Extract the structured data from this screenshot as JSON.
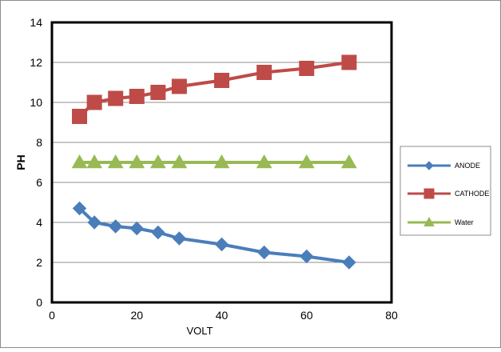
{
  "chart_data": {
    "type": "line",
    "title": "",
    "xlabel": "VOLT",
    "ylabel": "PH",
    "xlim": [
      0,
      80
    ],
    "ylim": [
      0,
      14
    ],
    "x_ticks": [
      "0",
      "20",
      "40",
      "60",
      "80"
    ],
    "y_ticks": [
      "0",
      "2",
      "4",
      "6",
      "8",
      "10",
      "12",
      "14"
    ],
    "grid": "horizontal",
    "legend_position": "right",
    "series": [
      {
        "name": "ANODE",
        "marker": "diamond",
        "color": "#4a7ebb",
        "x": [
          6.5,
          10,
          15,
          20,
          25,
          30,
          40,
          50,
          60,
          70
        ],
        "y": [
          4.7,
          4.0,
          3.8,
          3.7,
          3.5,
          3.2,
          2.9,
          2.5,
          2.3,
          2.0
        ]
      },
      {
        "name": "CATHODE",
        "marker": "square",
        "color": "#be4b48",
        "x": [
          6.5,
          10,
          15,
          20,
          25,
          30,
          40,
          50,
          60,
          70
        ],
        "y": [
          9.3,
          10.0,
          10.2,
          10.3,
          10.5,
          10.8,
          11.1,
          11.5,
          11.7,
          12.0
        ]
      },
      {
        "name": "Water",
        "marker": "triangle",
        "color": "#98b954",
        "x": [
          6.5,
          10,
          15,
          20,
          25,
          30,
          40,
          50,
          60,
          70
        ],
        "y": [
          7,
          7,
          7,
          7,
          7,
          7,
          7,
          7,
          7,
          7
        ]
      }
    ]
  }
}
